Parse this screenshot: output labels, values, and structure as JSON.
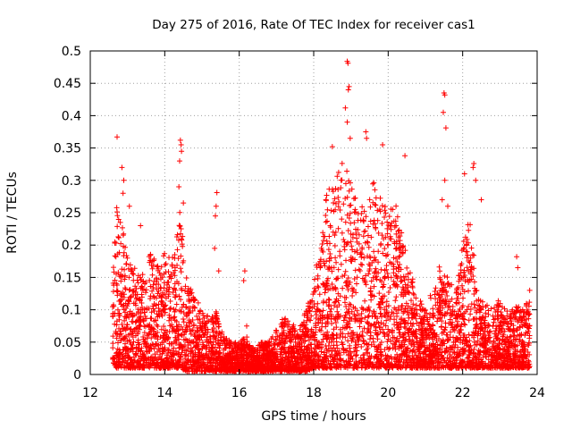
{
  "chart_data": {
    "type": "scatter",
    "title": "Day 275 of 2016, Rate Of TEC Index for receiver cas1",
    "xlabel": "GPS time / hours",
    "ylabel": "ROTI / TECUs",
    "xlim": [
      12,
      24
    ],
    "ylim": [
      0,
      0.5
    ],
    "x_ticks": [
      "12",
      "14",
      "16",
      "18",
      "20",
      "22",
      "24"
    ],
    "x_tick_values": [
      12,
      14,
      16,
      18,
      20,
      22,
      24
    ],
    "y_ticks": [
      "0",
      "0.05",
      "0.1",
      "0.15",
      "0.2",
      "0.25",
      "0.3",
      "0.35",
      "0.4",
      "0.45",
      "0.5"
    ],
    "y_tick_values": [
      0,
      0.05,
      0.1,
      0.15,
      0.2,
      0.25,
      0.3,
      0.35,
      0.4,
      0.45,
      0.5
    ],
    "grid": true,
    "marker": "plus",
    "color": "#ff0000",
    "envelope": {
      "x": [
        12.6,
        12.7,
        12.8,
        12.9,
        13.0,
        13.2,
        13.4,
        13.6,
        13.8,
        14.0,
        14.2,
        14.4,
        14.6,
        14.8,
        15.0,
        15.2,
        15.4,
        15.6,
        15.8,
        16.0,
        16.2,
        16.4,
        16.6,
        16.8,
        17.0,
        17.2,
        17.4,
        17.6,
        17.8,
        18.0,
        18.2,
        18.4,
        18.6,
        18.8,
        19.0,
        19.2,
        19.4,
        19.6,
        19.8,
        20.0,
        20.2,
        20.4,
        20.6,
        20.8,
        21.0,
        21.2,
        21.4,
        21.6,
        21.8,
        22.0,
        22.2,
        22.4,
        22.6,
        22.8,
        23.0,
        23.2,
        23.4,
        23.6,
        23.8
      ],
      "y_max": [
        0.16,
        0.27,
        0.25,
        0.22,
        0.2,
        0.18,
        0.16,
        0.19,
        0.17,
        0.19,
        0.18,
        0.26,
        0.15,
        0.13,
        0.1,
        0.09,
        0.1,
        0.06,
        0.05,
        0.05,
        0.06,
        0.04,
        0.05,
        0.05,
        0.07,
        0.09,
        0.08,
        0.07,
        0.1,
        0.14,
        0.22,
        0.3,
        0.32,
        0.33,
        0.3,
        0.27,
        0.25,
        0.3,
        0.28,
        0.25,
        0.27,
        0.22,
        0.16,
        0.12,
        0.11,
        0.13,
        0.18,
        0.15,
        0.13,
        0.2,
        0.25,
        0.12,
        0.11,
        0.1,
        0.12,
        0.1,
        0.11,
        0.1,
        0.12
      ],
      "y_min": [
        0.02,
        0.01,
        0.01,
        0.01,
        0.01,
        0.01,
        0.01,
        0.01,
        0.01,
        0.01,
        0.01,
        0.01,
        0.005,
        0.005,
        0.005,
        0.005,
        0.005,
        0.005,
        0.005,
        0.005,
        0.005,
        0.005,
        0.005,
        0.005,
        0.005,
        0.005,
        0.005,
        0.005,
        0.005,
        0.01,
        0.01,
        0.01,
        0.01,
        0.01,
        0.01,
        0.01,
        0.01,
        0.01,
        0.01,
        0.01,
        0.01,
        0.01,
        0.01,
        0.01,
        0.01,
        0.01,
        0.01,
        0.01,
        0.01,
        0.01,
        0.01,
        0.01,
        0.01,
        0.01,
        0.01,
        0.01,
        0.01,
        0.01,
        0.01
      ]
    },
    "spikes": [
      {
        "x": 12.72,
        "y": 0.367
      },
      {
        "x": 12.85,
        "y": 0.32
      },
      {
        "x": 12.9,
        "y": 0.3
      },
      {
        "x": 12.88,
        "y": 0.28
      },
      {
        "x": 13.05,
        "y": 0.26
      },
      {
        "x": 13.35,
        "y": 0.23
      },
      {
        "x": 14.42,
        "y": 0.362
      },
      {
        "x": 14.44,
        "y": 0.355
      },
      {
        "x": 14.45,
        "y": 0.345
      },
      {
        "x": 14.4,
        "y": 0.33
      },
      {
        "x": 14.38,
        "y": 0.29
      },
      {
        "x": 14.5,
        "y": 0.265
      },
      {
        "x": 15.4,
        "y": 0.281
      },
      {
        "x": 15.38,
        "y": 0.26
      },
      {
        "x": 15.36,
        "y": 0.245
      },
      {
        "x": 15.34,
        "y": 0.195
      },
      {
        "x": 15.45,
        "y": 0.16
      },
      {
        "x": 16.15,
        "y": 0.16
      },
      {
        "x": 16.12,
        "y": 0.145
      },
      {
        "x": 16.2,
        "y": 0.075
      },
      {
        "x": 18.9,
        "y": 0.484
      },
      {
        "x": 18.92,
        "y": 0.481
      },
      {
        "x": 18.95,
        "y": 0.445
      },
      {
        "x": 18.93,
        "y": 0.44
      },
      {
        "x": 18.85,
        "y": 0.412
      },
      {
        "x": 18.9,
        "y": 0.39
      },
      {
        "x": 18.98,
        "y": 0.365
      },
      {
        "x": 18.5,
        "y": 0.352
      },
      {
        "x": 19.4,
        "y": 0.375
      },
      {
        "x": 19.42,
        "y": 0.365
      },
      {
        "x": 19.85,
        "y": 0.355
      },
      {
        "x": 20.45,
        "y": 0.338
      },
      {
        "x": 21.5,
        "y": 0.435
      },
      {
        "x": 21.52,
        "y": 0.432
      },
      {
        "x": 21.48,
        "y": 0.405
      },
      {
        "x": 21.55,
        "y": 0.381
      },
      {
        "x": 21.52,
        "y": 0.3
      },
      {
        "x": 21.45,
        "y": 0.27
      },
      {
        "x": 21.6,
        "y": 0.26
      },
      {
        "x": 22.3,
        "y": 0.326
      },
      {
        "x": 22.28,
        "y": 0.32
      },
      {
        "x": 22.35,
        "y": 0.3
      },
      {
        "x": 22.05,
        "y": 0.31
      },
      {
        "x": 22.5,
        "y": 0.27
      },
      {
        "x": 23.45,
        "y": 0.182
      },
      {
        "x": 23.48,
        "y": 0.165
      },
      {
        "x": 23.8,
        "y": 0.13
      }
    ]
  }
}
